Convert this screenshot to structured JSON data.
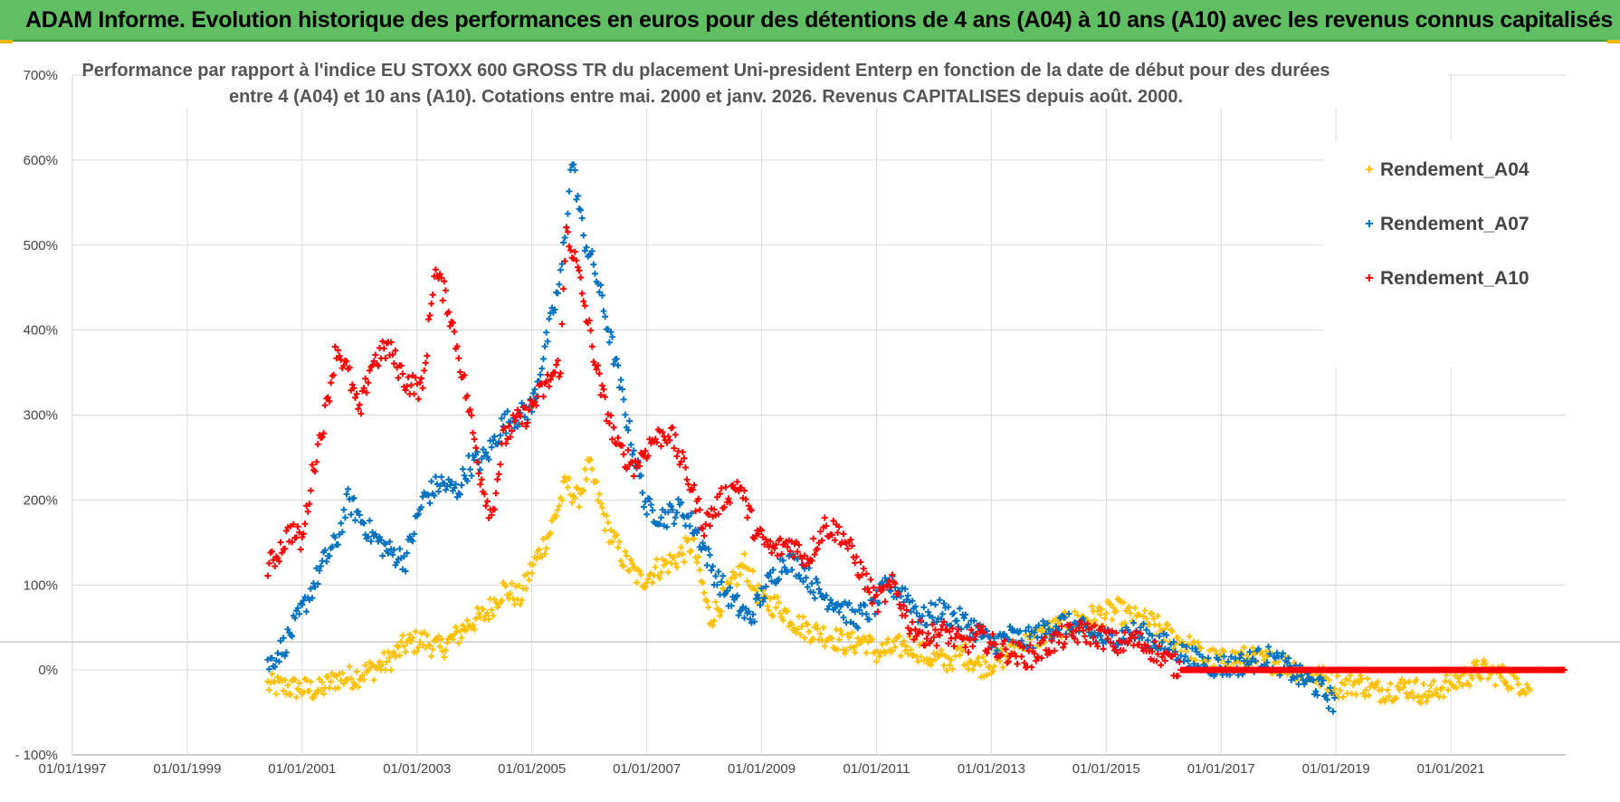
{
  "banner": {
    "title": "ADAM Informe. Evolution historique des performances en euros pour des détentions de 4 ans (A04) à 10 ans (A10) avec les revenus connus capitalisés"
  },
  "colors": {
    "banner_bg": "#5fbf62",
    "series_A04": "#ffc000",
    "series_A07": "#0070c0",
    "series_A10": "#ff0000",
    "grid": "#d9d9d9"
  },
  "chart_data": {
    "type": "scatter",
    "title_line1": "Performance par rapport à l'indice EU STOXX 600 GROSS TR  du placement Uni-president Enterp  en fonction de la date de début pour des durées",
    "title_line2": "entre 4 (A04) et 10 ans (A10). Cotations entre mai. 2000 et janv. 2026. Revenus CAPITALISES depuis août. 2000.",
    "xlabel": "",
    "ylabel": "",
    "x_ticks": [
      "01/01/1997",
      "01/01/1999",
      "01/01/2001",
      "01/01/2003",
      "01/01/2005",
      "01/01/2007",
      "01/01/2009",
      "01/01/2011",
      "01/01/2013",
      "01/01/2015",
      "01/01/2017",
      "01/01/2019",
      "01/01/2021"
    ],
    "y_ticks": [
      "- 100%",
      "0%",
      "100%",
      "200%",
      "300%",
      "400%",
      "500%",
      "600%",
      "700%"
    ],
    "xlim": [
      1997.0,
      2023.0
    ],
    "ylim": [
      -100,
      700
    ],
    "legend_position": "top-right",
    "marker": "+",
    "series": [
      {
        "name": "Rendement_A04",
        "x": [
          2000.4,
          2000.7,
          2001.0,
          2001.3,
          2001.6,
          2001.9,
          2002.2,
          2002.5,
          2002.8,
          2003.1,
          2003.4,
          2003.7,
          2003.9,
          2004.2,
          2004.5,
          2004.8,
          2005.0,
          2005.3,
          2005.6,
          2005.8,
          2006.0,
          2006.3,
          2006.6,
          2006.9,
          2007.2,
          2007.5,
          2007.8,
          2008.1,
          2008.4,
          2008.7,
          2009.0,
          2009.3,
          2009.6,
          2009.9,
          2010.2,
          2010.5,
          2010.8,
          2011.0,
          2011.3,
          2011.6,
          2011.9,
          2012.2,
          2012.5,
          2012.8,
          2013.1,
          2013.4,
          2013.7,
          2014.0,
          2014.3,
          2014.6,
          2014.9,
          2015.2,
          2015.5,
          2015.8,
          2016.1,
          2016.4,
          2016.7,
          2017.0,
          2017.3,
          2017.6,
          2017.9,
          2018.2,
          2018.5,
          2018.8,
          2019.1,
          2019.4,
          2019.7,
          2020.0,
          2020.3,
          2020.6,
          2020.9,
          2021.2,
          2021.5,
          2021.8,
          2022.1,
          2022.4
        ],
        "y": [
          -18,
          -20,
          -22,
          -24,
          -10,
          -8,
          0,
          10,
          30,
          35,
          25,
          40,
          55,
          65,
          95,
          85,
          120,
          160,
          220,
          200,
          240,
          170,
          130,
          105,
          120,
          130,
          150,
          60,
          90,
          125,
          80,
          75,
          55,
          45,
          40,
          30,
          35,
          20,
          25,
          30,
          15,
          10,
          20,
          5,
          10,
          25,
          35,
          45,
          55,
          60,
          65,
          70,
          60,
          55,
          40,
          30,
          15,
          10,
          15,
          12,
          10,
          5,
          -5,
          -10,
          -20,
          -15,
          -25,
          -22,
          -20,
          -30,
          -18,
          -10,
          0,
          -5,
          -12,
          -20
        ]
      },
      {
        "name": "Rendement_A07",
        "x": [
          2000.4,
          2000.7,
          2001.0,
          2001.2,
          2001.4,
          2001.6,
          2001.8,
          2002.0,
          2002.2,
          2002.5,
          2002.8,
          2003.1,
          2003.4,
          2003.7,
          2003.9,
          2004.2,
          2004.5,
          2004.8,
          2005.0,
          2005.3,
          2005.5,
          2005.7,
          2005.9,
          2006.1,
          2006.4,
          2006.7,
          2007.0,
          2007.3,
          2007.6,
          2007.9,
          2008.2,
          2008.5,
          2008.8,
          2009.1,
          2009.4,
          2009.7,
          2010.0,
          2010.3,
          2010.6,
          2010.9,
          2011.2,
          2011.5,
          2011.8,
          2012.1,
          2012.4,
          2012.7,
          2013.0,
          2013.3,
          2013.6,
          2013.9,
          2014.2,
          2014.5,
          2014.8,
          2015.1,
          2015.4,
          2015.7,
          2016.0,
          2016.3,
          2016.6,
          2016.9,
          2017.2,
          2017.5,
          2017.8,
          2018.1,
          2018.4,
          2018.7,
          2019.0
        ],
        "y": [
          5,
          30,
          70,
          100,
          130,
          150,
          200,
          180,
          160,
          140,
          130,
          200,
          220,
          210,
          240,
          250,
          290,
          300,
          310,
          400,
          460,
          600,
          510,
          470,
          380,
          280,
          190,
          180,
          190,
          160,
          110,
          80,
          60,
          100,
          130,
          120,
          90,
          80,
          60,
          70,
          100,
          90,
          60,
          70,
          60,
          50,
          30,
          40,
          35,
          45,
          55,
          50,
          40,
          35,
          45,
          40,
          30,
          20,
          10,
          5,
          5,
          10,
          15,
          5,
          -10,
          -20,
          -40
        ]
      },
      {
        "name": "Rendement_A10",
        "x": [
          2000.4,
          2000.6,
          2000.8,
          2001.0,
          2001.2,
          2001.4,
          2001.6,
          2001.8,
          2002.0,
          2002.2,
          2002.5,
          2002.8,
          2003.1,
          2003.3,
          2003.5,
          2003.7,
          2003.9,
          2004.1,
          2004.3,
          2004.5,
          2004.7,
          2004.9,
          2005.1,
          2005.3,
          2005.5,
          2005.6,
          2005.8,
          2006.0,
          2006.2,
          2006.5,
          2006.8,
          2007.1,
          2007.4,
          2007.7,
          2008.0,
          2008.3,
          2008.6,
          2008.9,
          2009.2,
          2009.5,
          2009.8,
          2010.1,
          2010.4,
          2010.7,
          2011.0,
          2011.3,
          2011.6,
          2011.9,
          2012.2,
          2012.5,
          2012.8,
          2013.1,
          2013.4,
          2013.7,
          2014.0,
          2014.3,
          2014.6,
          2014.9,
          2015.2,
          2015.5,
          2015.8,
          2016.1,
          2016.3,
          2017.0,
          2018.0,
          2019.0,
          2020.0,
          2021.0,
          2022.0,
          2023.0
        ],
        "y": [
          120,
          140,
          165,
          150,
          240,
          300,
          380,
          350,
          300,
          360,
          380,
          340,
          330,
          470,
          440,
          380,
          310,
          230,
          180,
          270,
          290,
          300,
          320,
          340,
          360,
          520,
          470,
          400,
          330,
          260,
          240,
          270,
          280,
          230,
          170,
          200,
          220,
          160,
          140,
          150,
          130,
          170,
          160,
          120,
          80,
          100,
          50,
          40,
          45,
          30,
          40,
          25,
          20,
          15,
          30,
          40,
          45,
          40,
          30,
          35,
          25,
          10,
          0,
          0,
          0,
          0,
          0,
          0,
          0,
          0
        ]
      }
    ]
  }
}
